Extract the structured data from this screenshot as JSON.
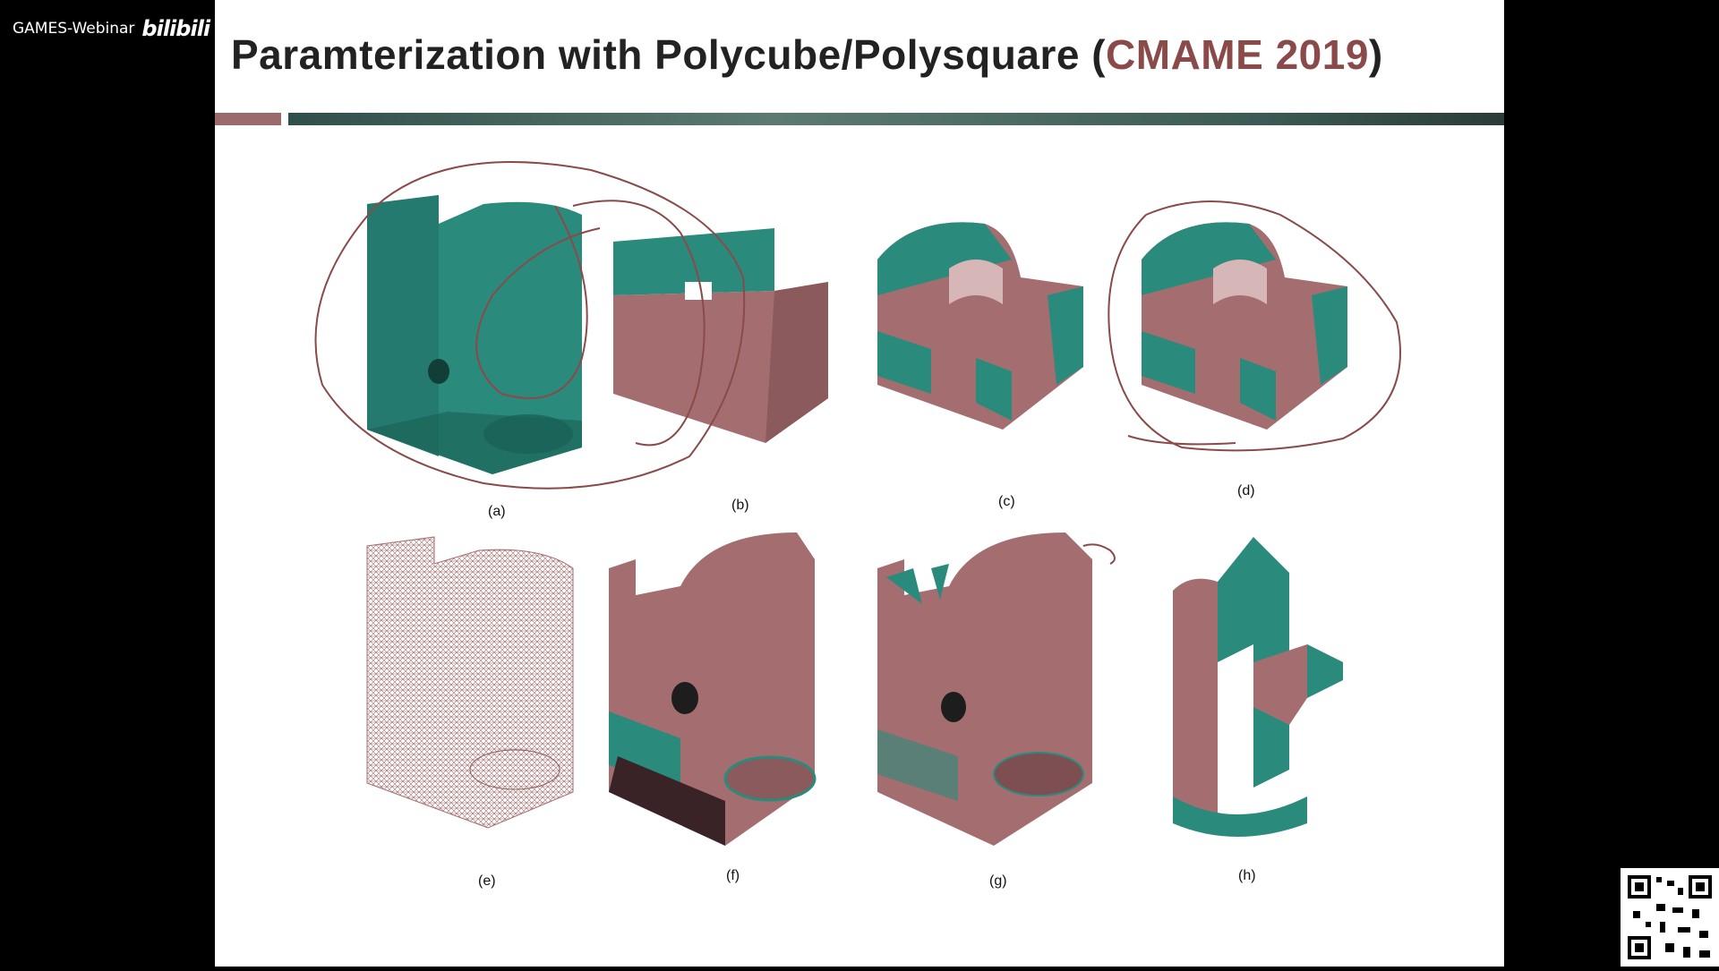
{
  "overlay": {
    "channel_label": "GAMES-Webinar",
    "platform_logo_text": "bilibili"
  },
  "slide": {
    "title_main": "Paramterization  with Polycube/Polysquare (",
    "title_highlight": "CMAME 2019",
    "title_close": ")",
    "colors": {
      "teal": "#2a8a7c",
      "mauve": "#a46e70",
      "accent": "#8a4a4a",
      "ink": "#8a4a4a"
    },
    "figure_labels": [
      "(a)",
      "(b)",
      "(c)",
      "(d)",
      "(e)",
      "(f)",
      "(g)",
      "(h)"
    ]
  },
  "qr_code": {
    "icon": "qr-code-icon"
  }
}
